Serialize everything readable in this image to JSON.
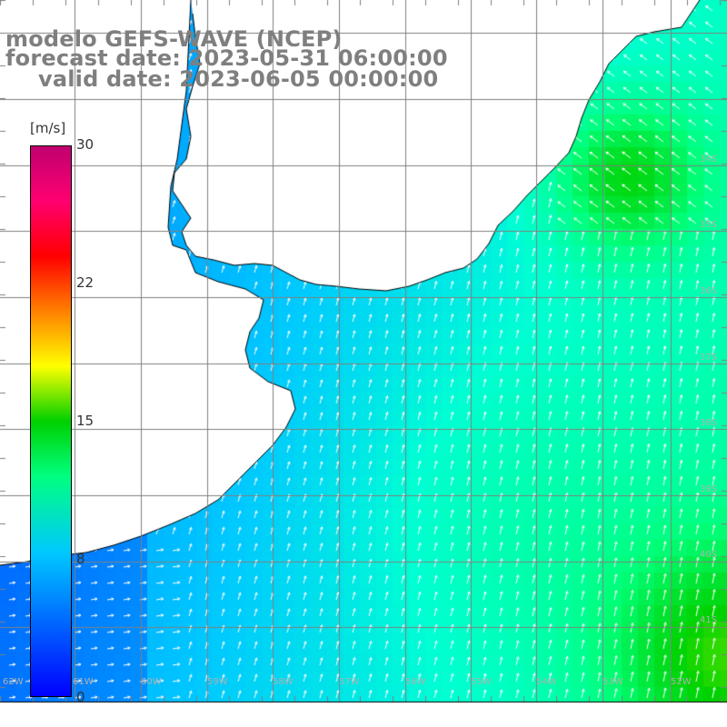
{
  "title": {
    "model": "modelo GEFS-WAVE (NCEP)",
    "forecast": "forecast date: 2023-05-31 06:00:00",
    "valid": "valid date: 2023-06-05 00:00:00"
  },
  "colorbar": {
    "unit": "[m/s]",
    "ticks": [
      "30",
      "22",
      "15",
      "8",
      "0"
    ],
    "colors": [
      "#0000ff",
      "#00c8ff",
      "#00ff80",
      "#00d000",
      "#ffff00",
      "#ff8000",
      "#ff0000",
      "#c00070"
    ]
  },
  "map": {
    "land_color": "#ffffff",
    "coastline_color": "#000000",
    "grid_color": "#808080",
    "lat_labels": [
      "34S",
      "35S",
      "36S",
      "37S",
      "38S",
      "39S",
      "40S",
      "41S"
    ],
    "lon_labels": [
      "62W",
      "61W",
      "60W",
      "59W",
      "58W",
      "57W",
      "56W",
      "55W",
      "54W",
      "53W",
      "52W"
    ]
  }
}
